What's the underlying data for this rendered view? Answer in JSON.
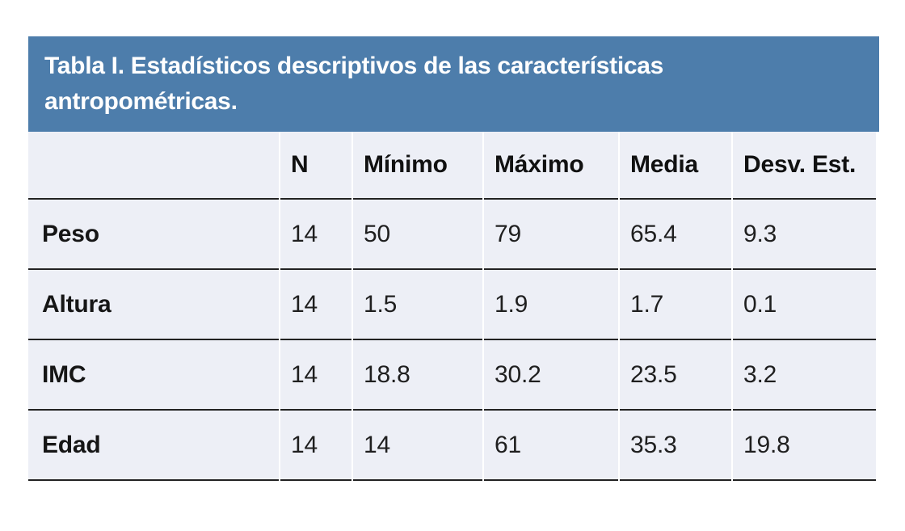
{
  "table": {
    "title": "Tabla I. Estadísticos descriptivos de las características antropométricas.",
    "columns": [
      "",
      "N",
      "Mínimo",
      "Máximo",
      "Media",
      "Desv. Est."
    ],
    "rows": [
      {
        "label": "Peso",
        "values": [
          "14",
          "50",
          "79",
          "65.4",
          "9.3"
        ]
      },
      {
        "label": "Altura",
        "values": [
          "14",
          "1.5",
          "1.9",
          "1.7",
          "0.1"
        ]
      },
      {
        "label": "IMC",
        "values": [
          "14",
          "18.8",
          "30.2",
          "23.5",
          "3.2"
        ]
      },
      {
        "label": "Edad",
        "values": [
          "14",
          "14",
          "61",
          "35.3",
          "19.8"
        ]
      }
    ],
    "colors": {
      "header_bg": "#4d7dab",
      "title_text": "#ffffff",
      "body_bg": "#edeff6",
      "rule": "#222222",
      "text": "#1f1f1f"
    }
  },
  "chart_data": {
    "type": "table",
    "title": "Tabla I. Estadísticos descriptivos de las características antropométricas.",
    "columns": [
      "N",
      "Mínimo",
      "Máximo",
      "Media",
      "Desv. Est."
    ],
    "row_labels": [
      "Peso",
      "Altura",
      "IMC",
      "Edad"
    ],
    "values": [
      [
        14,
        50,
        79,
        65.4,
        9.3
      ],
      [
        14,
        1.5,
        1.9,
        1.7,
        0.1
      ],
      [
        14,
        18.8,
        30.2,
        23.5,
        3.2
      ],
      [
        14,
        14,
        61,
        35.3,
        19.8
      ]
    ]
  }
}
